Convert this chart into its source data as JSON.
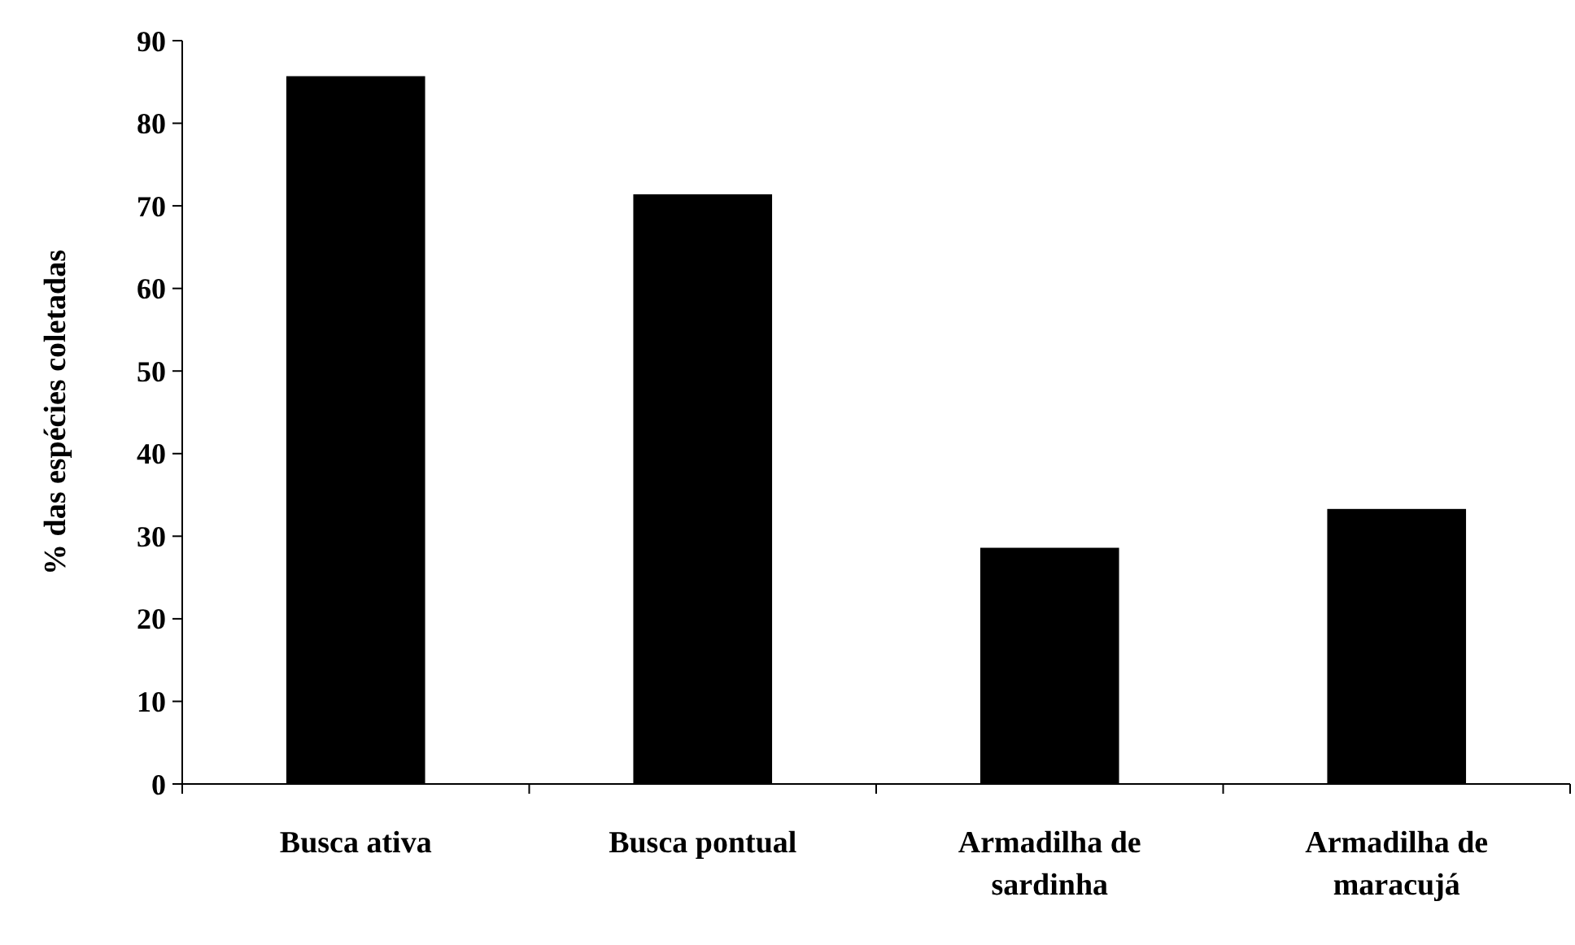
{
  "chart_data": {
    "type": "bar",
    "ylabel": "% das espécies coletadas",
    "categories": [
      "Busca ativa",
      "Busca pontual",
      "Armadilha de sardinha",
      "Armadilha de maracujá"
    ],
    "values": [
      85.7,
      71.4,
      28.6,
      33.3
    ],
    "color": "#000000",
    "ylim": [
      0,
      90
    ],
    "yticks": [
      0,
      10,
      20,
      30,
      40,
      50,
      60,
      70,
      80,
      90
    ],
    "grid": false
  }
}
